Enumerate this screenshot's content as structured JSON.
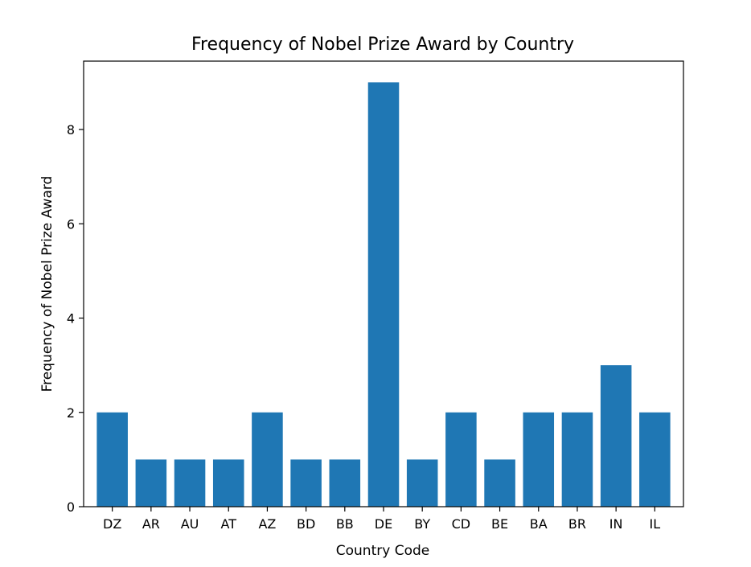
{
  "chart_data": {
    "type": "bar",
    "title": "Frequency of Nobel Prize Award by Country",
    "xlabel": "Country Code",
    "ylabel": "Frequency of Nobel Prize Award",
    "categories": [
      "DZ",
      "AR",
      "AU",
      "AT",
      "AZ",
      "BD",
      "BB",
      "DE",
      "BY",
      "CD",
      "BE",
      "BA",
      "BR",
      "IN",
      "IL"
    ],
    "values": [
      2,
      1,
      1,
      1,
      2,
      1,
      1,
      9,
      1,
      2,
      1,
      2,
      2,
      3,
      2
    ],
    "yticks": [
      0,
      2,
      4,
      6,
      8
    ],
    "ylim": [
      0,
      9.45
    ],
    "grid": false,
    "bar_color": "#1f77b4"
  }
}
